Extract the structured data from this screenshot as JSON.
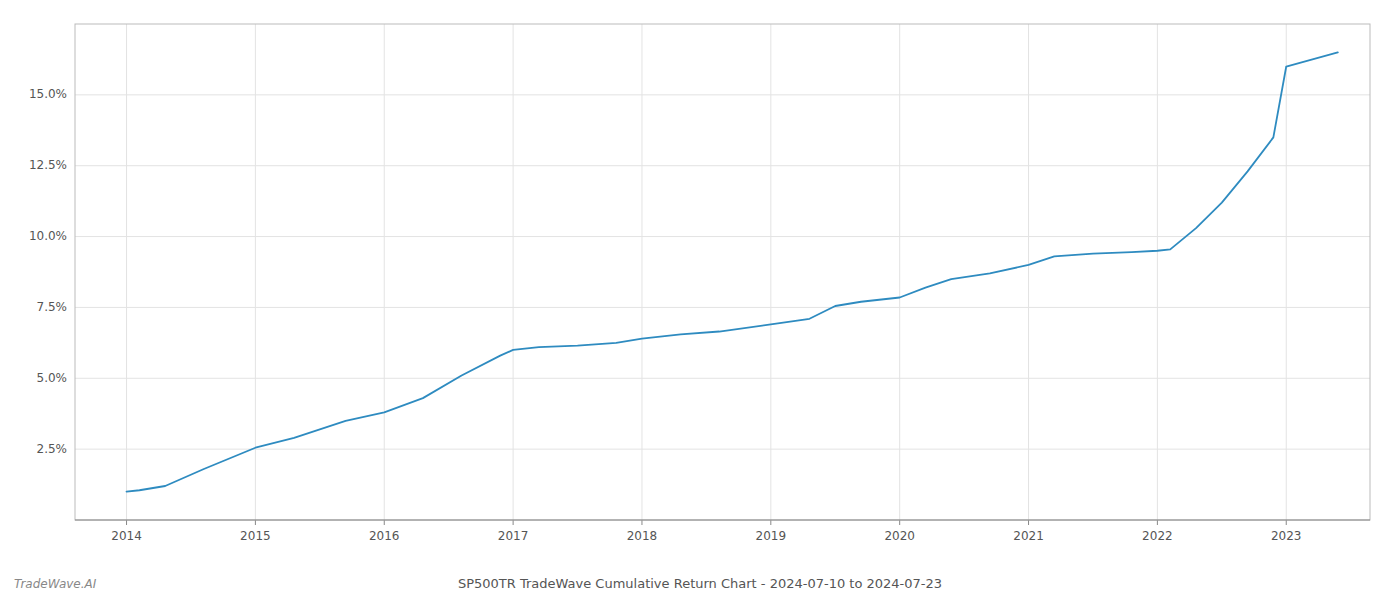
{
  "chart_data": {
    "type": "line",
    "title": "SP500TR TradeWave Cumulative Return Chart - 2024-07-10 to 2024-07-23",
    "annotations": [
      "TradeWave.AI"
    ],
    "x": [
      2014.0,
      2014.1,
      2014.3,
      2014.6,
      2015.0,
      2015.3,
      2015.7,
      2016.0,
      2016.3,
      2016.6,
      2016.9,
      2017.0,
      2017.2,
      2017.5,
      2017.8,
      2018.0,
      2018.3,
      2018.6,
      2019.0,
      2019.3,
      2019.5,
      2019.7,
      2020.0,
      2020.2,
      2020.4,
      2020.7,
      2021.0,
      2021.2,
      2021.5,
      2021.8,
      2022.0,
      2022.1,
      2022.3,
      2022.5,
      2022.7,
      2022.9,
      2023.0,
      2023.4
    ],
    "series": [
      {
        "color": "#2e8bc0",
        "values": [
          1.0,
          1.05,
          1.2,
          1.8,
          2.55,
          2.9,
          3.5,
          3.8,
          4.3,
          5.1,
          5.8,
          6.0,
          6.1,
          6.15,
          6.25,
          6.4,
          6.55,
          6.65,
          6.9,
          7.1,
          7.55,
          7.7,
          7.85,
          8.2,
          8.5,
          8.7,
          9.0,
          9.3,
          9.4,
          9.45,
          9.5,
          9.55,
          10.3,
          11.2,
          12.3,
          13.5,
          16.0,
          16.5
        ]
      }
    ],
    "xlim": [
      2013.6,
      2023.65
    ],
    "xticks": [
      2014,
      2015,
      2016,
      2017,
      2018,
      2019,
      2020,
      2021,
      2022,
      2023
    ],
    "ylim": [
      0.0,
      17.5
    ],
    "yticks": [
      {
        "value": 2.5,
        "label": "2.5%"
      },
      {
        "value": 5.0,
        "label": "5.0%"
      },
      {
        "value": 7.5,
        "label": "7.5%"
      },
      {
        "value": 10.0,
        "label": "10.0%"
      },
      {
        "value": 12.5,
        "label": "12.5%"
      },
      {
        "value": 15.0,
        "label": "15.0%"
      }
    ],
    "grid": true
  }
}
